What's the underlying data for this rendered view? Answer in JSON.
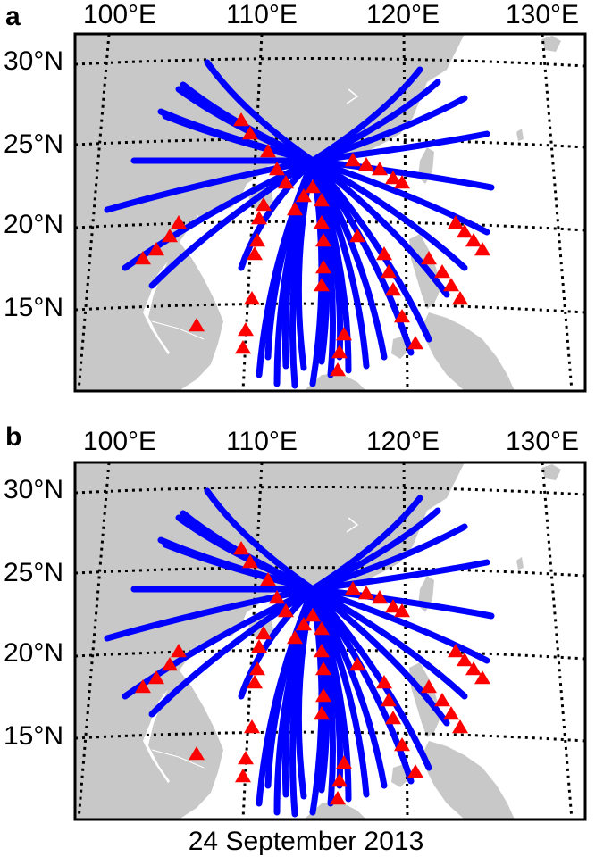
{
  "panels": [
    {
      "letter": "a",
      "lon_labels": [
        "100°E",
        "110°E",
        "120°E",
        "130°E"
      ],
      "lat_labels": [
        "30°N",
        "25°N",
        "20°N",
        "15°N"
      ]
    },
    {
      "letter": "b",
      "lon_labels": [
        "100°E",
        "110°E",
        "120°E",
        "130°E"
      ],
      "lat_labels": [
        "30°N",
        "25°N",
        "20°N",
        "15°N"
      ]
    }
  ],
  "caption": "24 September 2013",
  "colors": {
    "land": "#c8c8c8",
    "ocean": "#ffffff",
    "trajectory": "#0000ff",
    "marker": "#ff0000",
    "graticule": "#000000"
  },
  "legend_semantics": {
    "trajectory_line": "blue",
    "marker_shape": "red-triangle"
  }
}
